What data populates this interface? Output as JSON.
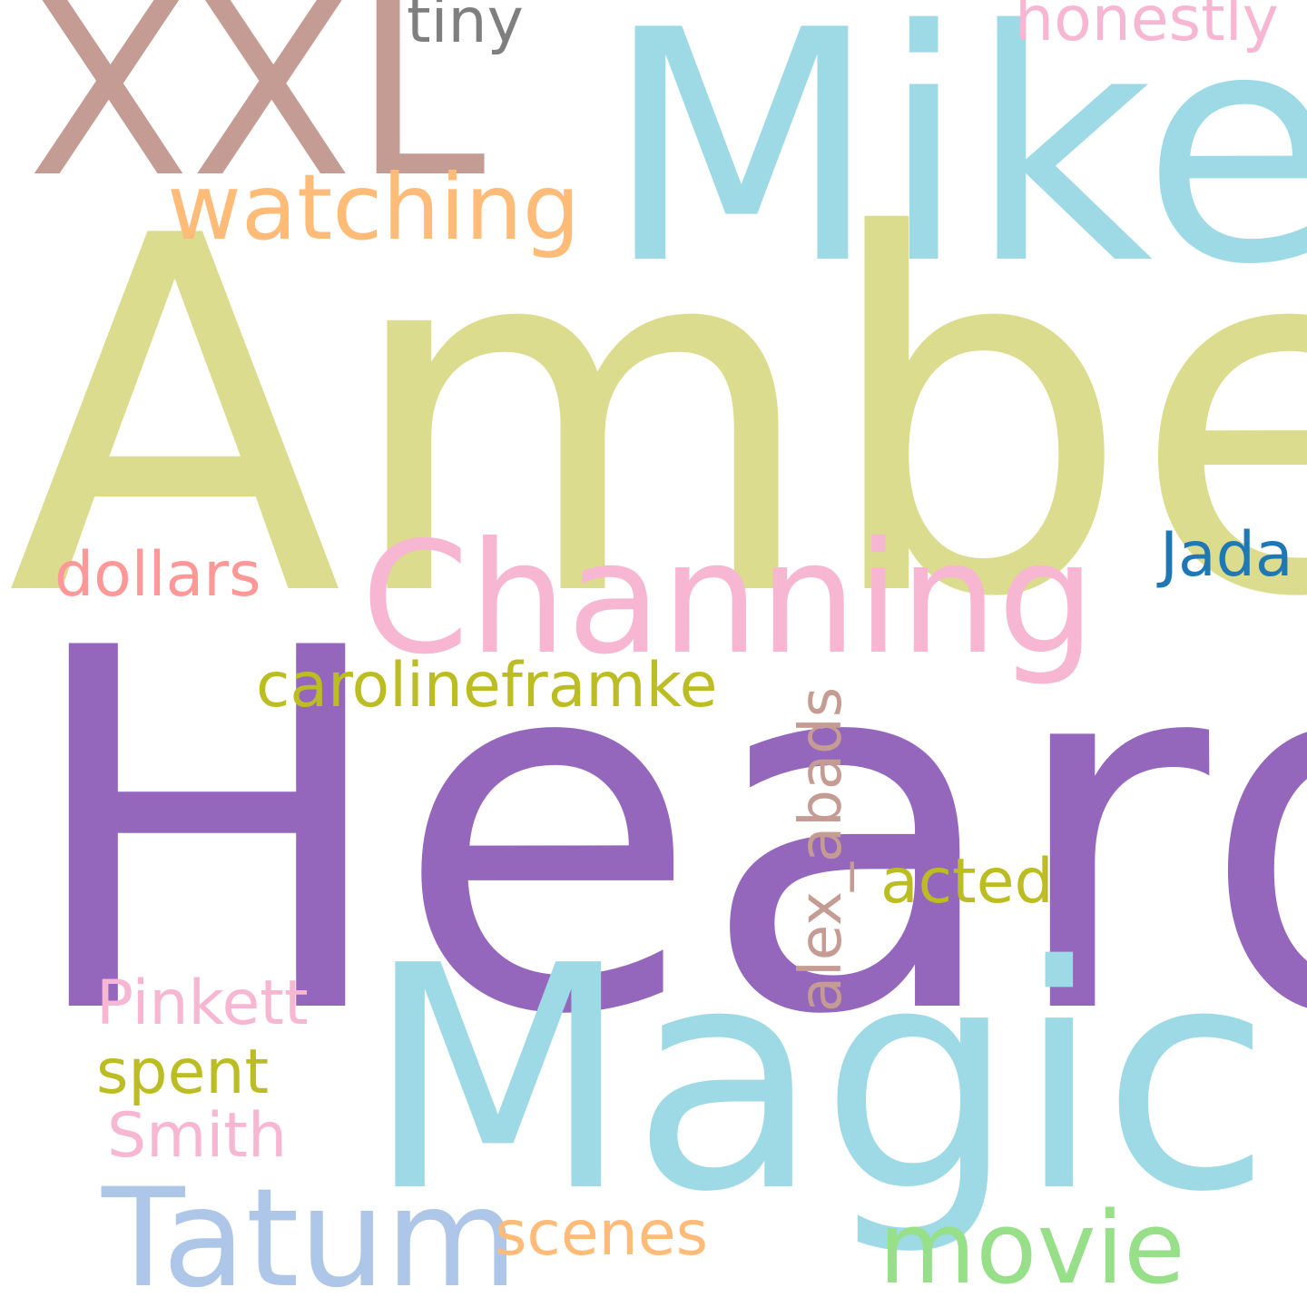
{
  "words": {
    "amber": {
      "text": "Amber",
      "color": "#dbdc8d"
    },
    "heard": {
      "text": "Heard",
      "color": "#9467bd"
    },
    "mike": {
      "text": "Mike",
      "color": "#9edae5"
    },
    "magic": {
      "text": "Magic",
      "color": "#9edae5"
    },
    "xxl": {
      "text": "XXL",
      "color": "#c49c94"
    },
    "channing": {
      "text": "Channing",
      "color": "#f7b6d2"
    },
    "tatum": {
      "text": "Tatum",
      "color": "#aec7e8"
    },
    "movie": {
      "text": "movie",
      "color": "#98df8a"
    },
    "watching": {
      "text": "watching",
      "color": "#ffbb78"
    },
    "carolineframke": {
      "text": "carolineframke",
      "color": "#bcbd22"
    },
    "acted": {
      "text": "acted",
      "color": "#bcbd22"
    },
    "pinkett": {
      "text": "Pinkett",
      "color": "#f7b6d2"
    },
    "spent": {
      "text": "spent",
      "color": "#bcbd22"
    },
    "smith": {
      "text": "Smith",
      "color": "#f7b6d2"
    },
    "scenes": {
      "text": "scenes",
      "color": "#ffbb78"
    },
    "dollars": {
      "text": "dollars",
      "color": "#ff9896"
    },
    "jada": {
      "text": "Jada",
      "color": "#1f77b4"
    },
    "tiny": {
      "text": "tiny",
      "color": "#7f7f7f"
    },
    "honestly": {
      "text": "honestly",
      "color": "#f7b6d2"
    },
    "alex_abads": {
      "text": "alex_abads",
      "color": "#c49c94"
    }
  }
}
